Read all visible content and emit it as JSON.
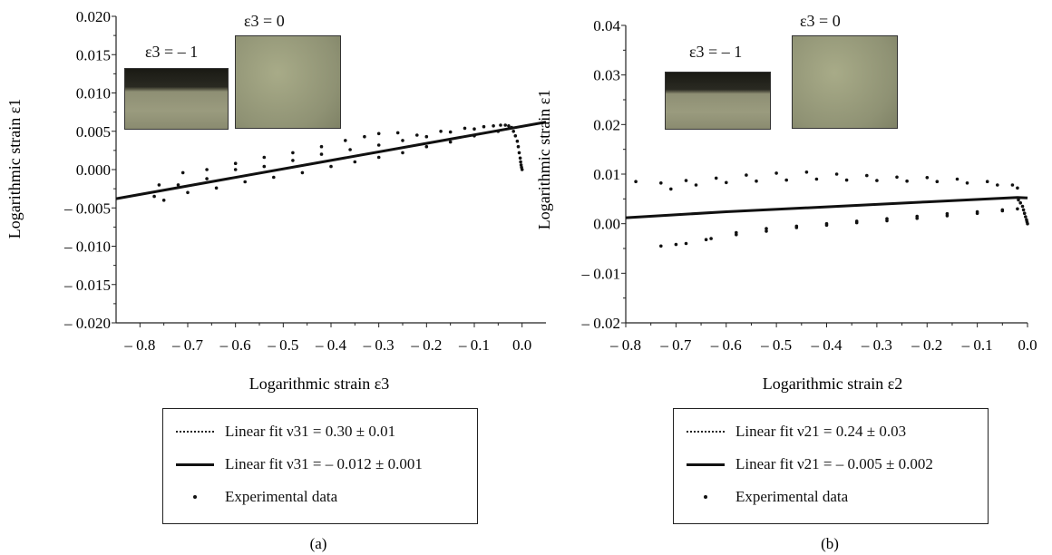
{
  "panels": [
    {
      "label": "(a)",
      "inset_labels": [
        "ε3 = – 1",
        "ε3 = 0"
      ],
      "legend": [
        {
          "text": "Linear fit ν31 = 0.30 ± 0.01",
          "style": "dotted"
        },
        {
          "text": "Linear fit ν31 = – 0.012 ± 0.001",
          "style": "solid"
        },
        {
          "text": "Experimental data",
          "style": "dot"
        }
      ]
    },
    {
      "label": "(b)",
      "inset_labels": [
        "ε3 = – 1",
        "ε3 = 0"
      ],
      "legend": [
        {
          "text": "Linear fit ν21 = 0.24 ± 0.03",
          "style": "dotted"
        },
        {
          "text": "Linear fit ν21 = – 0.005 ± 0.002",
          "style": "solid"
        },
        {
          "text": "Experimental data",
          "style": "dot"
        }
      ]
    }
  ],
  "chart_data": [
    {
      "type": "scatter",
      "xlabel": "Logarithmic strain ε3",
      "ylabel": "Logarithmic strain ε1",
      "xlim": [
        -0.85,
        0.05
      ],
      "ylim": [
        -0.02,
        0.02
      ],
      "xticks": [
        -0.8,
        -0.7,
        -0.6,
        -0.5,
        -0.4,
        -0.3,
        -0.2,
        -0.1,
        0.0
      ],
      "xtick_labels": [
        "– 0.8",
        "– 0.7",
        "– 0.6",
        "– 0.5",
        "– 0.4",
        "– 0.3",
        "– 0.2",
        "– 0.1",
        "0.0"
      ],
      "yticks": [
        -0.02,
        -0.015,
        -0.01,
        -0.005,
        0.0,
        0.005,
        0.01,
        0.015,
        0.02
      ],
      "ytick_labels": [
        "– 0.020",
        "– 0.015",
        "– 0.010",
        "– 0.005",
        "0.000",
        "0.005",
        "0.010",
        "0.015",
        "0.020"
      ],
      "series": [
        {
          "style": "line",
          "x": [
            -0.85,
            0.05
          ],
          "y": [
            -0.0038,
            0.0062
          ]
        },
        {
          "style": "dots",
          "x": [
            -0.77,
            -0.72,
            -0.66,
            -0.6,
            -0.54,
            -0.48,
            -0.42,
            -0.36,
            -0.3,
            -0.25,
            -0.2,
            -0.15,
            -0.1,
            -0.06
          ],
          "y": [
            -0.0035,
            -0.002,
            -0.0012,
            0.0,
            0.0004,
            0.0012,
            0.002,
            0.0026,
            0.0032,
            0.0038,
            0.0043,
            0.0049,
            0.0053,
            0.0057
          ]
        },
        {
          "style": "dots",
          "x": [
            -0.76,
            -0.71,
            -0.66,
            -0.6,
            -0.54,
            -0.48,
            -0.42,
            -0.37,
            -0.33,
            -0.3,
            -0.26,
            -0.22,
            -0.17,
            -0.12,
            -0.08
          ],
          "y": [
            -0.002,
            -0.0004,
            0.0,
            0.0008,
            0.0016,
            0.0022,
            0.003,
            0.0038,
            0.0043,
            0.0047,
            0.0048,
            0.0045,
            0.005,
            0.0054,
            0.0056
          ]
        },
        {
          "style": "dots",
          "x": [
            -0.75,
            -0.7,
            -0.64,
            -0.58,
            -0.52,
            -0.46,
            -0.4,
            -0.35,
            -0.3,
            -0.25,
            -0.2,
            -0.15,
            -0.1,
            -0.05
          ],
          "y": [
            -0.004,
            -0.003,
            -0.0024,
            -0.0016,
            -0.001,
            -0.0004,
            0.0004,
            0.001,
            0.0016,
            0.0022,
            0.003,
            0.0036,
            0.0044,
            0.005
          ]
        },
        {
          "style": "dots",
          "x": [
            -0.045,
            -0.035,
            -0.028,
            -0.022,
            -0.018,
            -0.014,
            -0.01,
            -0.008,
            -0.006,
            -0.004,
            -0.003,
            -0.002,
            -0.001,
            0.0
          ],
          "y": [
            0.0058,
            0.0058,
            0.0057,
            0.0055,
            0.005,
            0.0044,
            0.0037,
            0.003,
            0.0022,
            0.0015,
            0.001,
            0.0006,
            0.0003,
            0.0
          ]
        }
      ]
    },
    {
      "type": "scatter",
      "xlabel": "Logarithmic strain ε2",
      "ylabel": "Logarithmic strain ε1",
      "xlim": [
        -0.8,
        0.0
      ],
      "ylim": [
        -0.02,
        0.04
      ],
      "xticks": [
        -0.8,
        -0.7,
        -0.6,
        -0.5,
        -0.4,
        -0.3,
        -0.2,
        -0.1,
        0.0
      ],
      "xtick_labels": [
        "– 0.8",
        "– 0.7",
        "– 0.6",
        "– 0.5",
        "– 0.4",
        "– 0.3",
        "– 0.2",
        "– 0.1",
        "0.0"
      ],
      "yticks": [
        -0.02,
        -0.01,
        0.0,
        0.01,
        0.02,
        0.03,
        0.04
      ],
      "ytick_labels": [
        "– 0.02",
        "– 0.01",
        "0.00",
        "0.01",
        "0.02",
        "0.03",
        "0.04"
      ],
      "series": [
        {
          "style": "line",
          "x": [
            -0.8,
            -0.6,
            -0.4,
            -0.2,
            -0.02,
            0.0
          ],
          "y": [
            0.0012,
            0.0024,
            0.0034,
            0.0044,
            0.0053,
            0.0052
          ]
        },
        {
          "style": "dots",
          "x": [
            -0.78,
            -0.73,
            -0.68,
            -0.62,
            -0.56,
            -0.5,
            -0.44,
            -0.38,
            -0.32,
            -0.26,
            -0.2,
            -0.14,
            -0.08,
            -0.03
          ],
          "y": [
            0.0085,
            0.0082,
            0.0087,
            0.0092,
            0.0098,
            0.0102,
            0.0104,
            0.01,
            0.0097,
            0.0094,
            0.0093,
            0.009,
            0.0085,
            0.0078
          ]
        },
        {
          "style": "dots",
          "x": [
            -0.71,
            -0.66,
            -0.6,
            -0.54,
            -0.48,
            -0.42,
            -0.36,
            -0.3,
            -0.24,
            -0.18,
            -0.12,
            -0.06,
            -0.02
          ],
          "y": [
            0.007,
            0.0078,
            0.0083,
            0.0086,
            0.0088,
            0.009,
            0.0088,
            0.0087,
            0.0086,
            0.0085,
            0.0082,
            0.0078,
            0.0072
          ]
        },
        {
          "style": "dots",
          "x": [
            -0.73,
            -0.68,
            -0.63,
            -0.58,
            -0.52,
            -0.46,
            -0.4,
            -0.34,
            -0.28,
            -0.22,
            -0.16,
            -0.1,
            -0.05
          ],
          "y": [
            -0.0045,
            -0.004,
            -0.003,
            -0.0018,
            -0.001,
            -0.0005,
            0.0,
            0.0005,
            0.001,
            0.0015,
            0.002,
            0.0024,
            0.0028
          ]
        },
        {
          "style": "dots",
          "x": [
            -0.7,
            -0.64,
            -0.58,
            -0.52,
            -0.46,
            -0.4,
            -0.34,
            -0.28,
            -0.22,
            -0.16,
            -0.1,
            -0.05,
            -0.02
          ],
          "y": [
            -0.0042,
            -0.0032,
            -0.0022,
            -0.0015,
            -0.0008,
            -0.0003,
            0.0002,
            0.0006,
            0.0011,
            0.0016,
            0.0021,
            0.0026,
            0.003
          ]
        },
        {
          "style": "dots",
          "x": [
            -0.018,
            -0.014,
            -0.01,
            -0.008,
            -0.006,
            -0.004,
            -0.002,
            -0.001,
            0.0
          ],
          "y": [
            0.0048,
            0.0042,
            0.0035,
            0.0028,
            0.0021,
            0.0014,
            0.0008,
            0.0004,
            0.0
          ]
        }
      ]
    }
  ]
}
